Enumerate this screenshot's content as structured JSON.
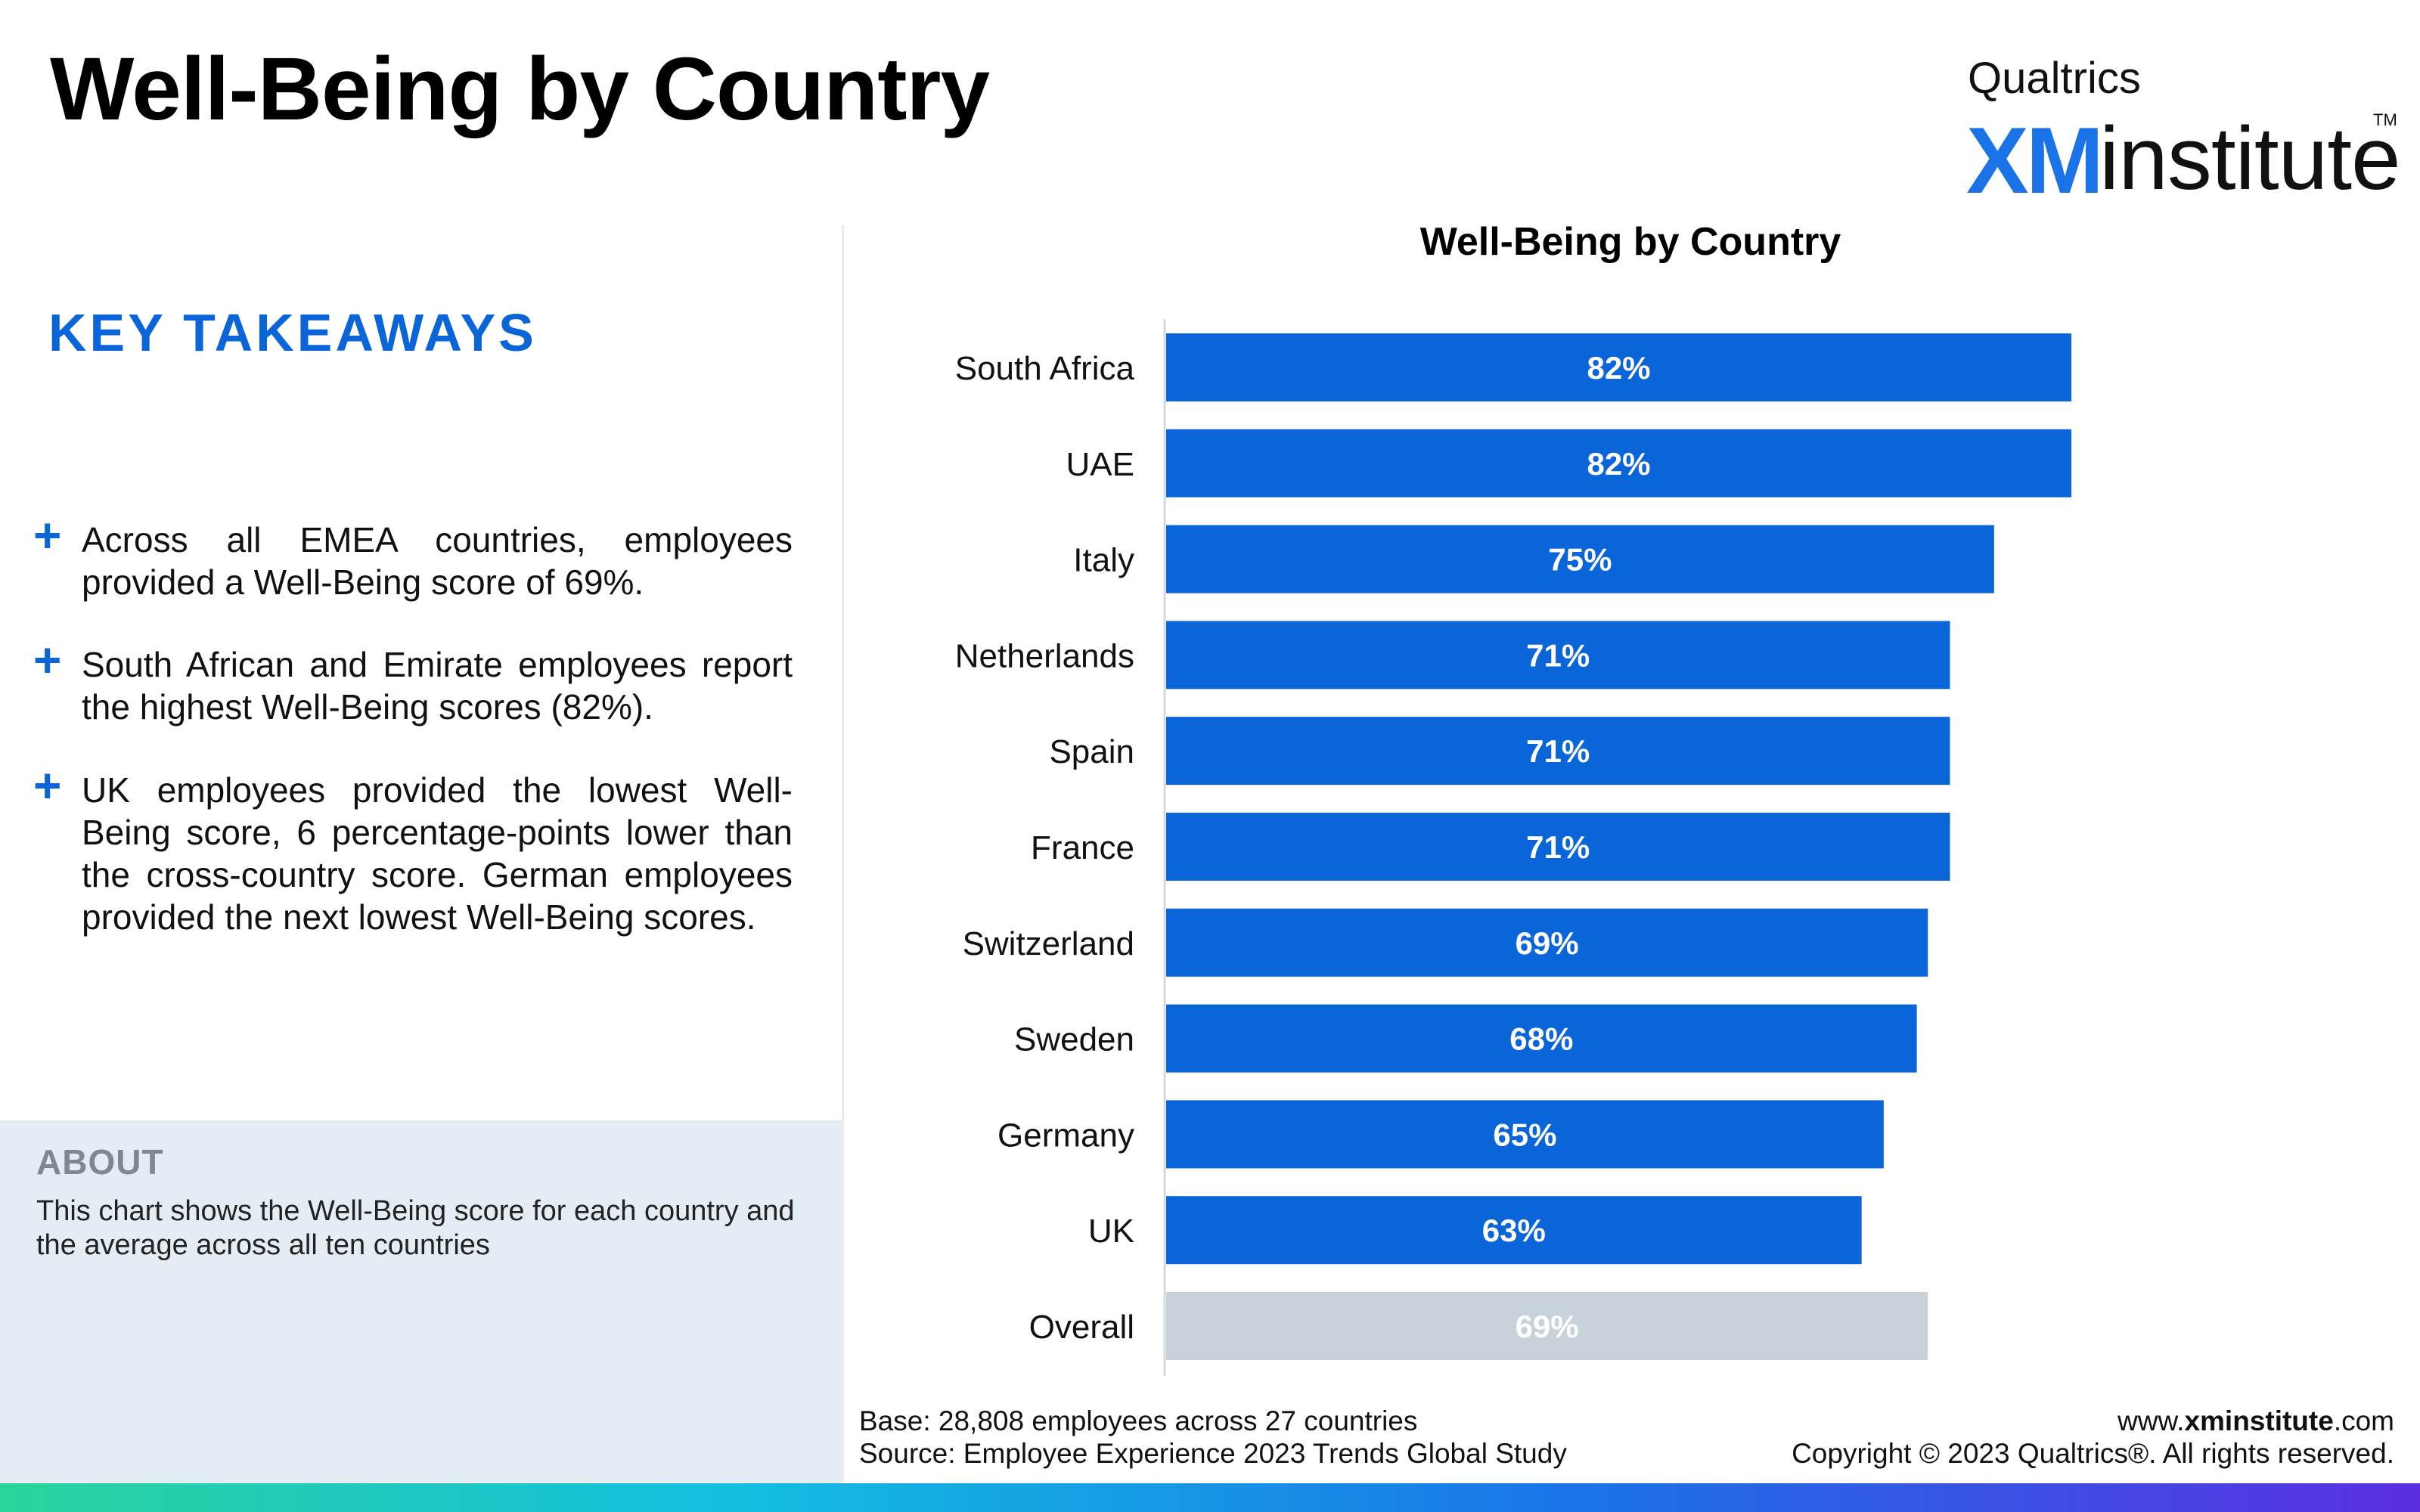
{
  "page_title": "Well-Being by Country",
  "logo": {
    "top": "Qualtrics",
    "xm": "XM",
    "institute": "institute",
    "tm": "TM"
  },
  "takeaways": {
    "title": "KEY TAKEAWAYS",
    "bullets": [
      "Across all EMEA countries, employees provided a Well-Being score of 69%.",
      "South African and Emirate employees report the highest Well-Being scores (82%).",
      "UK employees provided the lowest Well-Being score, 6 percentage-points lower than the cross-country score. German employees provided the next lowest Well-Being scores."
    ]
  },
  "about": {
    "title": "ABOUT",
    "text": "This chart shows the Well-Being score for each country and the average across all ten countries"
  },
  "footer": {
    "base": "Base: 28,808 employees across 27 countries",
    "source": "Source: Employee Experience 2023 Trends Global Study",
    "site_prefix": "www.",
    "site_bold": "xminstitute",
    "site_suffix": ".com",
    "copyright": "Copyright © 2023 Qualtrics®. All rights reserved."
  },
  "colors": {
    "bar": "#0a66d8",
    "overall_bar": "#c8d2da",
    "accent": "#0a66d8"
  },
  "chart_data": {
    "type": "bar",
    "orientation": "horizontal",
    "title": "Well-Being by Country",
    "categories": [
      "South Africa",
      "UAE",
      "Italy",
      "Netherlands",
      "Spain",
      "France",
      "Switzerland",
      "Sweden",
      "Germany",
      "UK",
      "Overall"
    ],
    "values": [
      82,
      82,
      75,
      71,
      71,
      71,
      69,
      68,
      65,
      63,
      69
    ],
    "labels": [
      "82%",
      "82%",
      "75%",
      "71%",
      "71%",
      "71%",
      "69%",
      "68%",
      "65%",
      "63%",
      "69%"
    ],
    "highlight": "Overall",
    "xlim": [
      0,
      100
    ],
    "unit": "%"
  }
}
